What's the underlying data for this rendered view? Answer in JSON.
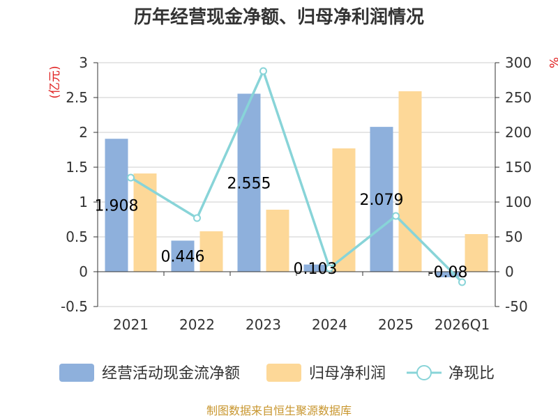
{
  "chart_data": {
    "type": "bar",
    "title": "历年经营现金净额、归母净利润情况",
    "categories": [
      "2021",
      "2022",
      "2023",
      "2024",
      "2025",
      "2026Q1"
    ],
    "left_axis": {
      "unit": "(亿元)",
      "ylim": [
        -0.5,
        3
      ],
      "ticks": [
        "-0.5",
        "0",
        "0.5",
        "1",
        "1.5",
        "2",
        "2.5",
        "3"
      ]
    },
    "right_axis": {
      "unit": "%",
      "ylim": [
        -50,
        300
      ],
      "ticks": [
        "-50",
        "0",
        "50",
        "100",
        "150",
        "200",
        "250",
        "300"
      ]
    },
    "series": [
      {
        "name": "经营活动现金流净额",
        "type": "bar",
        "axis": "left",
        "color": "#8eb0dc",
        "values": [
          1.908,
          0.446,
          2.555,
          0.103,
          2.079,
          -0.08
        ],
        "labels": [
          "1.908",
          "0.446",
          "2.555",
          "0.103",
          "2.079",
          "-0.08"
        ]
      },
      {
        "name": "归母净利润",
        "type": "bar",
        "axis": "left",
        "color": "#fdd898",
        "values": [
          1.41,
          0.58,
          0.89,
          1.77,
          2.59,
          0.54
        ]
      },
      {
        "name": "净现比",
        "type": "line",
        "axis": "right",
        "color": "#88d4d8",
        "values": [
          135,
          77,
          288,
          5,
          80,
          -15
        ]
      }
    ],
    "source": "制图数据来自恒生聚源数据库"
  }
}
